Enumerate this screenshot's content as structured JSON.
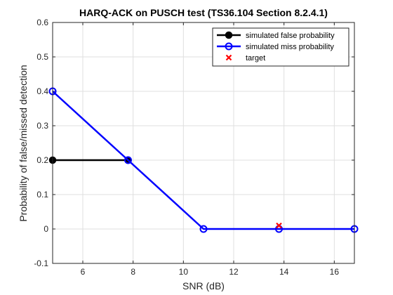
{
  "chart_data": {
    "type": "line",
    "title": "HARQ-ACK on PUSCH test (TS36.104 Section 8.2.4.1)",
    "xlabel": "SNR (dB)",
    "ylabel": "Probability of false/missed detection",
    "xlim": [
      4.8,
      16.8
    ],
    "ylim": [
      -0.1,
      0.6
    ],
    "xticks": [
      6,
      8,
      10,
      12,
      14,
      16
    ],
    "yticks": [
      -0.1,
      0,
      0.1,
      0.2,
      0.3,
      0.4,
      0.5,
      0.6
    ],
    "grid": true,
    "legend_position": "top-right",
    "series": [
      {
        "name": "simulated false probability",
        "color": "#000000",
        "marker": "filled-circle",
        "x": [
          4.8,
          7.8
        ],
        "y": [
          0.2,
          0.2
        ]
      },
      {
        "name": "simulated miss probability",
        "color": "#0000ff",
        "marker": "open-circle",
        "x": [
          4.8,
          7.8,
          10.8,
          13.8,
          16.8
        ],
        "y": [
          0.4,
          0.2,
          0.0,
          0.0,
          0.0
        ]
      },
      {
        "name": "target",
        "color": "#ff0000",
        "marker": "x",
        "x": [
          13.8
        ],
        "y": [
          0.01
        ]
      }
    ]
  }
}
